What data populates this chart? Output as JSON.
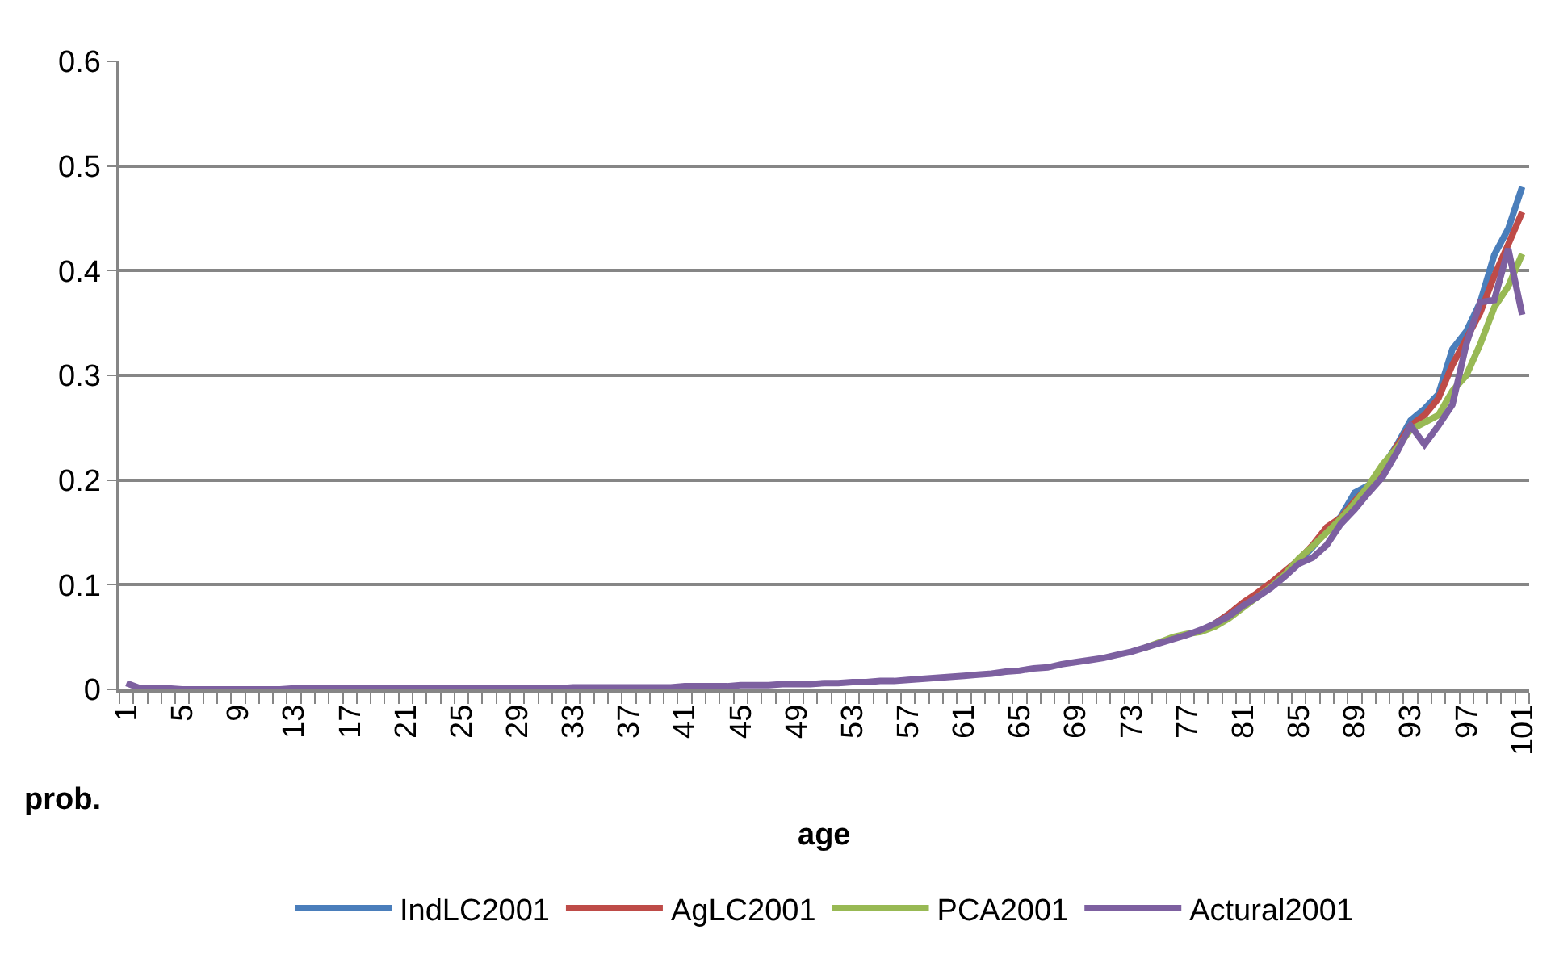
{
  "chart_data": {
    "type": "line",
    "xlabel": "age",
    "ylabel": "prob.",
    "categories": [
      "1",
      null,
      null,
      null,
      "5",
      null,
      null,
      null,
      "9",
      null,
      null,
      null,
      "13",
      null,
      null,
      null,
      "17",
      null,
      null,
      null,
      "21",
      null,
      null,
      null,
      "25",
      null,
      null,
      null,
      "29",
      null,
      null,
      null,
      "33",
      null,
      null,
      null,
      "37",
      null,
      null,
      null,
      "41",
      null,
      null,
      null,
      "45",
      null,
      null,
      null,
      "49",
      null,
      null,
      null,
      "53",
      null,
      null,
      null,
      "57",
      null,
      null,
      null,
      "61",
      null,
      null,
      null,
      "65",
      null,
      null,
      null,
      "69",
      null,
      null,
      null,
      "73",
      null,
      null,
      null,
      "77",
      null,
      null,
      null,
      "81",
      null,
      null,
      null,
      "85",
      null,
      null,
      null,
      "89",
      null,
      null,
      null,
      "93",
      null,
      null,
      null,
      "97",
      null,
      null,
      null,
      "101"
    ],
    "series": [
      {
        "name": "IndLC2001",
        "color": "#4a7ebb",
        "values": [
          null,
          null,
          null,
          null,
          null,
          null,
          null,
          null,
          null,
          null,
          null,
          null,
          null,
          null,
          null,
          null,
          null,
          null,
          null,
          null,
          null,
          null,
          null,
          null,
          null,
          null,
          null,
          null,
          null,
          null,
          null,
          null,
          null,
          null,
          null,
          null,
          null,
          null,
          null,
          null,
          null,
          null,
          null,
          null,
          null,
          null,
          null,
          null,
          null,
          null,
          null,
          null,
          null,
          null,
          null,
          null,
          null,
          null,
          null,
          null,
          null,
          null,
          null,
          null,
          null,
          null,
          null,
          null,
          null,
          null,
          null,
          null,
          null,
          null,
          null,
          null,
          null,
          null,
          0.063,
          0.072,
          0.082,
          0.09,
          0.1,
          0.112,
          0.122,
          0.136,
          0.152,
          0.165,
          0.188,
          0.195,
          0.212,
          0.233,
          0.257,
          0.268,
          0.282,
          0.325,
          0.342,
          0.37,
          0.415,
          0.44,
          0.48
        ]
      },
      {
        "name": "AgLC2001",
        "color": "#be4b48",
        "values": [
          null,
          null,
          null,
          null,
          null,
          null,
          null,
          null,
          null,
          null,
          null,
          null,
          null,
          null,
          null,
          null,
          null,
          null,
          null,
          null,
          null,
          null,
          null,
          null,
          null,
          null,
          null,
          null,
          null,
          null,
          null,
          null,
          null,
          null,
          null,
          null,
          null,
          null,
          null,
          null,
          null,
          null,
          null,
          null,
          null,
          null,
          null,
          null,
          null,
          null,
          null,
          null,
          null,
          null,
          null,
          null,
          null,
          null,
          null,
          null,
          null,
          null,
          null,
          null,
          null,
          null,
          null,
          null,
          null,
          null,
          null,
          null,
          null,
          null,
          null,
          null,
          null,
          null,
          0.063,
          0.072,
          0.083,
          0.092,
          0.102,
          0.113,
          0.124,
          0.138,
          0.155,
          0.164,
          0.18,
          0.194,
          0.21,
          0.232,
          0.252,
          0.262,
          0.278,
          0.31,
          0.335,
          0.36,
          0.395,
          0.425,
          0.456
        ]
      },
      {
        "name": "PCA2001",
        "color": "#98b954",
        "values": [
          null,
          null,
          null,
          null,
          null,
          null,
          null,
          null,
          null,
          null,
          null,
          null,
          null,
          null,
          null,
          null,
          null,
          null,
          null,
          null,
          null,
          null,
          null,
          null,
          null,
          null,
          null,
          null,
          null,
          null,
          null,
          null,
          null,
          null,
          null,
          null,
          null,
          null,
          null,
          null,
          null,
          null,
          null,
          null,
          null,
          null,
          null,
          null,
          null,
          null,
          null,
          null,
          null,
          null,
          null,
          null,
          null,
          null,
          null,
          null,
          null,
          null,
          null,
          null,
          null,
          null,
          null,
          null,
          null,
          null,
          null,
          null,
          null,
          0.04,
          0.045,
          0.05,
          0.053,
          0.055,
          0.06,
          0.068,
          0.078,
          0.088,
          0.098,
          0.11,
          0.125,
          0.137,
          0.15,
          0.163,
          0.178,
          0.195,
          0.215,
          0.23,
          0.248,
          0.255,
          0.262,
          0.285,
          0.3,
          0.33,
          0.365,
          0.385,
          0.416
        ]
      },
      {
        "name": "Actural2001",
        "color": "#7d60a0",
        "values": [
          0.006,
          0.001,
          0.001,
          0.001,
          0,
          0,
          0,
          0,
          0,
          0,
          0,
          0,
          0.001,
          0.001,
          0.001,
          0.001,
          0.001,
          0.001,
          0.001,
          0.001,
          0.001,
          0.001,
          0.001,
          0.001,
          0.001,
          0.001,
          0.001,
          0.001,
          0.001,
          0.001,
          0.001,
          0.001,
          0.002,
          0.002,
          0.002,
          0.002,
          0.002,
          0.002,
          0.002,
          0.002,
          0.003,
          0.003,
          0.003,
          0.003,
          0.004,
          0.004,
          0.004,
          0.005,
          0.005,
          0.005,
          0.006,
          0.006,
          0.007,
          0.007,
          0.008,
          0.008,
          0.009,
          0.01,
          0.011,
          0.012,
          0.013,
          0.014,
          0.015,
          0.017,
          0.018,
          0.02,
          0.021,
          0.024,
          0.026,
          0.028,
          0.03,
          0.033,
          0.036,
          0.04,
          0.044,
          0.048,
          0.052,
          0.057,
          0.063,
          0.07,
          0.08,
          0.088,
          0.097,
          0.108,
          0.12,
          0.126,
          0.138,
          0.158,
          0.172,
          0.188,
          0.203,
          0.226,
          0.252,
          0.234,
          0.252,
          0.272,
          0.33,
          0.37,
          0.372,
          0.421,
          0.358
        ]
      }
    ],
    "ylim": [
      0,
      0.6
    ],
    "yticks": [
      0,
      0.1,
      0.2,
      0.3,
      0.4,
      0.5,
      0.6
    ],
    "grid": "y",
    "legend": "bottom"
  }
}
